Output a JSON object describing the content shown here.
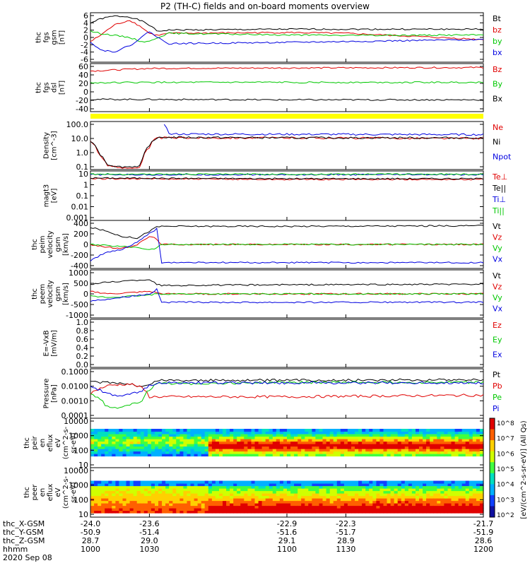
{
  "title": "P2 (TH-C) fields and on-board moments overview",
  "date_label": "2020 Sep 08",
  "colors": {
    "black": "#000000",
    "red": "#e00000",
    "green": "#00c800",
    "blue": "#0000e0",
    "yellow": "#ffff00"
  },
  "chart_data": [
    {
      "type": "line",
      "id": "fgs-gsm",
      "ylabel": [
        "thc",
        "fgs",
        "gsm",
        "[nT]"
      ],
      "yticks": [
        "6",
        "4",
        "2",
        "0",
        "-2",
        "-4",
        "-6"
      ],
      "ylim": [
        -6,
        6
      ],
      "legend": [
        {
          "label": "Bt",
          "color": "black"
        },
        {
          "label": "bz",
          "color": "red"
        },
        {
          "label": "by",
          "color": "green"
        },
        {
          "label": "bx",
          "color": "blue"
        }
      ],
      "series": [
        {
          "name": "Bt",
          "color": "black",
          "x": [
            1000,
            1005,
            1012,
            1020,
            1026,
            1030,
            1034,
            1040,
            1100,
            1130,
            1200
          ],
          "y": [
            3.5,
            4.5,
            5.2,
            5.0,
            4.0,
            3.0,
            1.5,
            1.8,
            2.0,
            2.0,
            2.0
          ]
        },
        {
          "name": "bz",
          "color": "red",
          "x": [
            1000,
            1005,
            1012,
            1020,
            1026,
            1030,
            1034,
            1040,
            1100,
            1130,
            1200
          ],
          "y": [
            -1.0,
            0.5,
            3.0,
            4.2,
            2.5,
            1.0,
            0.5,
            1.0,
            1.2,
            1.0,
            -0.5
          ]
        },
        {
          "name": "by",
          "color": "green",
          "x": [
            1000,
            1005,
            1012,
            1020,
            1026,
            1030,
            1034,
            1040,
            1100,
            1130,
            1200
          ],
          "y": [
            1.5,
            1.0,
            0.5,
            0.0,
            -1.0,
            -1.0,
            0.0,
            1.0,
            0.6,
            0.5,
            0.6
          ]
        },
        {
          "name": "bx",
          "color": "blue",
          "x": [
            1000,
            1005,
            1012,
            1020,
            1026,
            1030,
            1034,
            1040,
            1100,
            1130,
            1200
          ],
          "y": [
            -1.0,
            -3.0,
            -3.5,
            -2.0,
            0.0,
            1.5,
            0.0,
            -1.5,
            -1.2,
            -1.0,
            -0.5
          ]
        }
      ]
    },
    {
      "type": "line",
      "id": "fgs-dsl",
      "ylabel": [
        "thc",
        "fgs",
        "dsl",
        "[nT]"
      ],
      "yticks": [
        "60",
        "40",
        "20",
        "0",
        "-20",
        "-40"
      ],
      "ylim": [
        -50,
        60
      ],
      "legend": [
        {
          "label": "Bz",
          "color": "red"
        },
        {
          "label": "By",
          "color": "green"
        },
        {
          "label": "Bx",
          "color": "black"
        }
      ],
      "series": [
        {
          "name": "Bz",
          "color": "red",
          "x": [
            1000,
            1030,
            1100,
            1200
          ],
          "y": [
            43,
            49,
            50,
            51
          ]
        },
        {
          "name": "By",
          "color": "green",
          "x": [
            1000,
            1030,
            1100,
            1200
          ],
          "y": [
            16,
            17,
            17,
            17
          ]
        },
        {
          "name": "Bx",
          "color": "black",
          "x": [
            1000,
            1030,
            1100,
            1200
          ],
          "y": [
            -22,
            -22,
            -23,
            -23
          ]
        }
      ]
    },
    {
      "type": "line",
      "id": "density",
      "log": true,
      "ylabel": [
        "Density",
        "[cm^-3]"
      ],
      "yticks": [
        "100.0",
        "10.0",
        "1.0",
        "0.1"
      ],
      "ylim": [
        0.03,
        200
      ],
      "legend": [
        {
          "label": "Ne",
          "color": "red"
        },
        {
          "label": "Ni",
          "color": "black"
        },
        {
          "label": "Npot",
          "color": "blue"
        }
      ],
      "series": [
        {
          "name": "Ne",
          "color": "red",
          "x": [
            1000,
            1004,
            1008,
            1014,
            1020,
            1026,
            1030,
            1034,
            1100,
            1200
          ],
          "y": [
            5,
            0.5,
            0.07,
            0.04,
            0.04,
            0.05,
            1.5,
            10,
            10,
            9
          ]
        },
        {
          "name": "Ni",
          "color": "black",
          "x": [
            1000,
            1004,
            1008,
            1014,
            1020,
            1026,
            1030,
            1034,
            1100,
            1200
          ],
          "y": [
            6,
            0.6,
            0.08,
            0.05,
            0.05,
            0.06,
            2,
            11,
            10,
            10
          ]
        },
        {
          "name": "Npot",
          "color": "blue",
          "x": [
            1037,
            1040,
            1200
          ],
          "y": [
            150,
            20,
            18
          ]
        }
      ]
    },
    {
      "type": "line",
      "id": "temperature",
      "log": true,
      "ylabel": [
        "magt3",
        "[eV]"
      ],
      "yticks": [
        "10",
        "1",
        "0.1",
        "0.01",
        "0.001"
      ],
      "ylim": [
        0.0001,
        20
      ],
      "legend": [
        {
          "label": "Te⊥",
          "color": "red"
        },
        {
          "label": "Te||",
          "color": "black"
        },
        {
          "label": "Ti⊥",
          "color": "blue"
        },
        {
          "label": "Ti||",
          "color": "green"
        }
      ],
      "series": [
        {
          "name": "Te⊥",
          "color": "red",
          "x": [
            1000,
            1100,
            1200
          ],
          "y": [
            3,
            2.5,
            2.5
          ]
        },
        {
          "name": "Te||",
          "color": "black",
          "x": [
            1000,
            1100,
            1200
          ],
          "y": [
            3.5,
            3,
            3
          ]
        },
        {
          "name": "Ti⊥",
          "color": "blue",
          "x": [
            1000,
            1100,
            1200
          ],
          "y": [
            8,
            8,
            8
          ]
        },
        {
          "name": "Ti||",
          "color": "green",
          "x": [
            1000,
            1100,
            1200
          ],
          "y": [
            9,
            9,
            9
          ]
        }
      ]
    },
    {
      "type": "line",
      "id": "peim-velocity",
      "ylabel": [
        "thc",
        "peim",
        "velocity",
        "gsm",
        "[km/s]"
      ],
      "yticks": [
        "400",
        "200",
        "0",
        "-200",
        "-400"
      ],
      "ylim": [
        -450,
        450
      ],
      "legend": [
        {
          "label": "Vt",
          "color": "black"
        },
        {
          "label": "Vz",
          "color": "red"
        },
        {
          "label": "Vy",
          "color": "green"
        },
        {
          "label": "Vx",
          "color": "blue"
        }
      ],
      "series": [
        {
          "name": "Vt",
          "color": "black",
          "x": [
            1000,
            1008,
            1016,
            1024,
            1030,
            1034,
            1036,
            1100,
            1200
          ],
          "y": [
            320,
            250,
            150,
            120,
            250,
            330,
            340,
            340,
            350
          ]
        },
        {
          "name": "Vz",
          "color": "red",
          "x": [
            1000,
            1008,
            1016,
            1024,
            1030,
            1034,
            1036,
            1100,
            1200
          ],
          "y": [
            0,
            -50,
            -80,
            0,
            150,
            100,
            0,
            0,
            0
          ]
        },
        {
          "name": "Vy",
          "color": "green",
          "x": [
            1000,
            1008,
            1016,
            1024,
            1030,
            1034,
            1036,
            1100,
            1200
          ],
          "y": [
            0,
            -20,
            -40,
            -50,
            -100,
            -60,
            0,
            0,
            0
          ]
        },
        {
          "name": "Vx",
          "color": "blue",
          "x": [
            1000,
            1008,
            1016,
            1024,
            1030,
            1034,
            1036,
            1100,
            1200
          ],
          "y": [
            -300,
            -150,
            -100,
            50,
            200,
            300,
            -340,
            -340,
            -340
          ]
        }
      ]
    },
    {
      "type": "line",
      "id": "peem-velocity",
      "ylabel": [
        "thc",
        "peem",
        "velocity",
        "gsm",
        "[km/s]"
      ],
      "yticks": [
        "1000",
        "500",
        "0",
        "-500",
        "-1000"
      ],
      "ylim": [
        -1000,
        1000
      ],
      "legend": [
        {
          "label": "Vt",
          "color": "black"
        },
        {
          "label": "Vz",
          "color": "red"
        },
        {
          "label": "Vy",
          "color": "green"
        },
        {
          "label": "Vx",
          "color": "blue"
        }
      ],
      "series": [
        {
          "name": "Vt",
          "color": "black",
          "x": [
            1000,
            1010,
            1020,
            1030,
            1034,
            1036,
            1100,
            1200
          ],
          "y": [
            400,
            500,
            550,
            600,
            400,
            350,
            380,
            400
          ]
        },
        {
          "name": "Vz",
          "color": "red",
          "x": [
            1000,
            1010,
            1020,
            1030,
            1034,
            1036,
            1100,
            1200
          ],
          "y": [
            100,
            0,
            50,
            100,
            50,
            0,
            0,
            0
          ]
        },
        {
          "name": "Vy",
          "color": "green",
          "x": [
            1000,
            1010,
            1020,
            1030,
            1034,
            1036,
            1100,
            1200
          ],
          "y": [
            -100,
            -150,
            -100,
            -50,
            0,
            0,
            0,
            0
          ]
        },
        {
          "name": "Vx",
          "color": "blue",
          "x": [
            1000,
            1010,
            1020,
            1030,
            1034,
            1036,
            1100,
            1200
          ],
          "y": [
            -300,
            -200,
            -100,
            0,
            200,
            -350,
            -350,
            -350
          ]
        }
      ]
    },
    {
      "type": "line",
      "id": "efield",
      "ylabel": [
        "E=-VxB",
        "[mV/m]"
      ],
      "yticks": [
        "1.0",
        "0.8",
        "0.6",
        "0.4",
        "0.2",
        "0.0"
      ],
      "ylim": [
        0,
        1
      ],
      "legend": [
        {
          "label": "Ez",
          "color": "red"
        },
        {
          "label": "Ey",
          "color": "green"
        },
        {
          "label": "Ex",
          "color": "blue"
        }
      ],
      "series": []
    },
    {
      "type": "line",
      "id": "pressure",
      "log": true,
      "ylabel": [
        "Pressure",
        "[nPa]"
      ],
      "yticks": [
        "0.1000",
        "0.0100",
        "0.0010",
        "0.0001"
      ],
      "ylim": [
        0.0001,
        0.1
      ],
      "legend": [
        {
          "label": "Pt",
          "color": "black"
        },
        {
          "label": "Pb",
          "color": "red"
        },
        {
          "label": "Pe",
          "color": "green"
        },
        {
          "label": "Pi",
          "color": "blue"
        }
      ],
      "series": [
        {
          "name": "Pt",
          "color": "black",
          "x": [
            1000,
            1010,
            1020,
            1026,
            1030,
            1034,
            1100,
            1200
          ],
          "y": [
            0.015,
            0.015,
            0.012,
            0.008,
            0.01,
            0.02,
            0.02,
            0.022
          ]
        },
        {
          "name": "Pb",
          "color": "red",
          "x": [
            1000,
            1010,
            1020,
            1026,
            1030,
            1034,
            1100,
            1200
          ],
          "y": [
            0.003,
            0.01,
            0.012,
            0.007,
            0.002,
            0.002,
            0.002,
            0.0025
          ]
        },
        {
          "name": "Pe",
          "color": "green",
          "x": [
            1000,
            1008,
            1016,
            1026,
            1030,
            1034,
            1100,
            1200
          ],
          "y": [
            0.003,
            0.0005,
            0.0004,
            0.001,
            0.005,
            0.012,
            0.015,
            0.015
          ]
        },
        {
          "name": "Pi",
          "color": "blue",
          "x": [
            1000,
            1008,
            1016,
            1026,
            1030,
            1034,
            1100,
            1200
          ],
          "y": [
            0.008,
            0.003,
            0.002,
            0.004,
            0.01,
            0.014,
            0.014,
            0.014
          ]
        }
      ]
    },
    {
      "type": "heatmap",
      "id": "peir-spec",
      "ylabel": [
        "thc",
        "peir",
        "en",
        "eflux",
        "eV",
        "(cm^2-s-",
        "sr-eV)"
      ],
      "yticks": [
        "10000",
        "1000",
        "100",
        "10"
      ],
      "ylim": [
        5,
        20000
      ]
    },
    {
      "type": "heatmap",
      "id": "peer-spec",
      "ylabel": [
        "thc",
        "peer",
        "en",
        "eflux",
        "eV",
        "(cm^2-s-",
        "sr-eV)"
      ],
      "yticks": [
        "10000",
        "1000",
        "100",
        "10"
      ],
      "ylim": [
        5,
        20000
      ]
    }
  ],
  "colorbar": {
    "label": "[eV/(cm^2-s-sr-eV)] (All Qs)",
    "ticks": [
      "10^8",
      "10^7",
      "10^6",
      "10^5",
      "10^4",
      "10^3",
      "10^2"
    ]
  },
  "xaxis": {
    "x": [
      1000,
      1030,
      1100,
      1130,
      1200
    ],
    "rows": [
      {
        "label": "thc_X-GSM",
        "values": [
          "-24.0",
          "-23.6",
          "-22.9",
          "-22.3",
          "-21.7"
        ]
      },
      {
        "label": "thc_Y-GSM",
        "values": [
          "-50.9",
          "-51.4",
          "-51.6",
          "-51.7",
          "-51.9"
        ]
      },
      {
        "label": "thc_Z-GSM",
        "values": [
          "28.7",
          "29.0",
          "29.1",
          "28.9",
          "28.6"
        ]
      },
      {
        "label": "hhmm",
        "values": [
          "1000",
          "1030",
          "1100",
          "1130",
          "1200"
        ]
      }
    ]
  }
}
